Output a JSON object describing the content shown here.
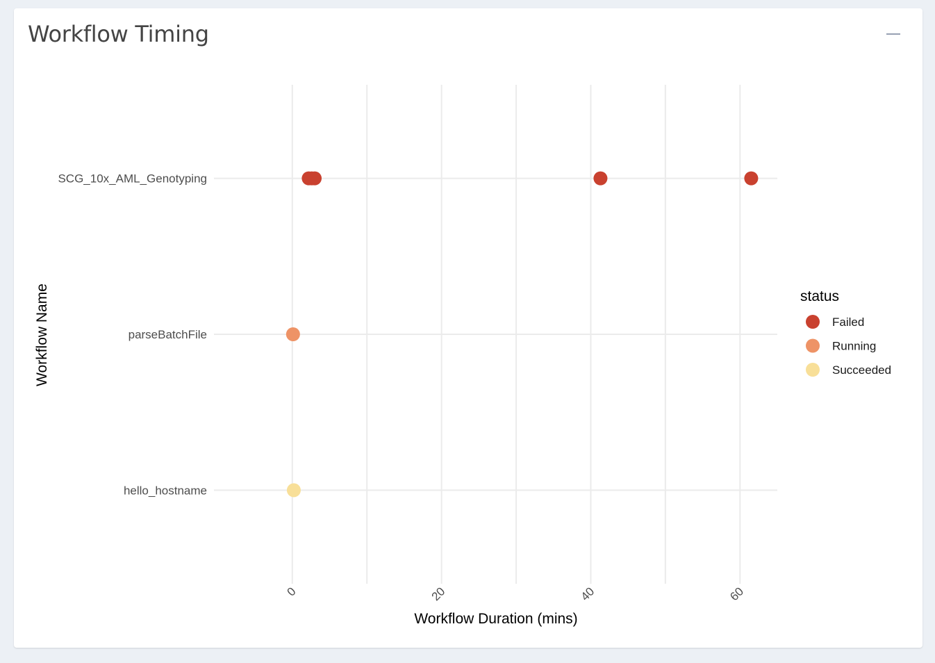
{
  "card": {
    "title": "Workflow Timing",
    "collapse_icon": "minus-icon"
  },
  "colors": {
    "Failed": "#c9412f",
    "Running": "#ee9366",
    "Succeeded": "#f8df98",
    "grid": "#ebebeb"
  },
  "chart_data": {
    "type": "scatter",
    "xlabel": "Workflow Duration (mins)",
    "ylabel": "Workflow Name",
    "xlim": [
      -10.5,
      65
    ],
    "x_ticks": [
      0,
      20,
      40,
      60
    ],
    "categories": [
      "SCG_10x_AML_Genotyping",
      "parseBatchFile",
      "hello_hostname"
    ],
    "grid": true,
    "legend": {
      "title": "status",
      "placement": "right",
      "entries": [
        "Failed",
        "Running",
        "Succeeded"
      ]
    },
    "series": [
      {
        "name": "Failed",
        "points": [
          {
            "x": 2.2,
            "y": "SCG_10x_AML_Genotyping"
          },
          {
            "x": 2.6,
            "y": "SCG_10x_AML_Genotyping"
          },
          {
            "x": 3.0,
            "y": "SCG_10x_AML_Genotyping"
          },
          {
            "x": 41.3,
            "y": "SCG_10x_AML_Genotyping"
          },
          {
            "x": 61.5,
            "y": "SCG_10x_AML_Genotyping"
          }
        ]
      },
      {
        "name": "Running",
        "points": [
          {
            "x": 0.1,
            "y": "parseBatchFile"
          }
        ]
      },
      {
        "name": "Succeeded",
        "points": [
          {
            "x": 0.2,
            "y": "hello_hostname"
          }
        ]
      }
    ]
  }
}
